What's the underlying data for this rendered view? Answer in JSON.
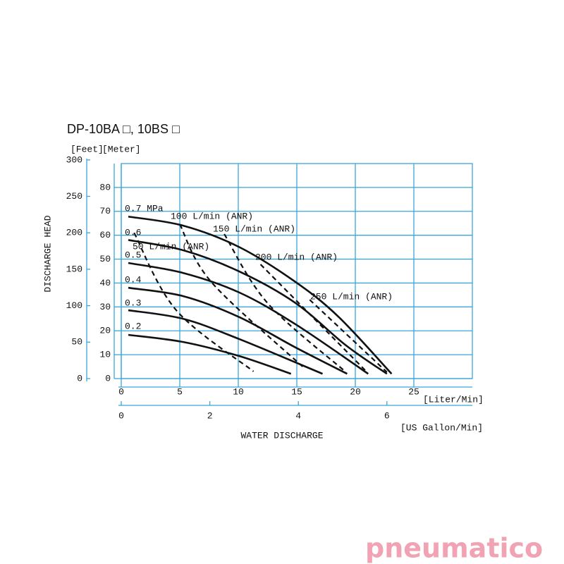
{
  "chart_data": {
    "type": "line",
    "title": "DP-10BA □, 10BS □",
    "y_label": "DISCHARGE HEAD",
    "y_unit": "[Meter]",
    "y2_unit": "[Feet]",
    "x_unit": "[Liter/Min]",
    "x2_unit": "[US Gallon/Min]",
    "x_label": "WATER DISCHARGE",
    "xlim": [
      0,
      30
    ],
    "xticks": [
      0,
      5,
      10,
      15,
      20,
      25
    ],
    "x2lim": [
      0,
      7.93
    ],
    "x2ticks": [
      0,
      2,
      4,
      6
    ],
    "ylim": [
      0,
      90
    ],
    "yticks": [
      0,
      10,
      20,
      30,
      40,
      50,
      60,
      70,
      80
    ],
    "y2lim": [
      0,
      295
    ],
    "y2ticks": [
      0,
      50,
      100,
      150,
      200,
      250,
      300
    ],
    "grid": true,
    "grid_color": "#3aa6d9",
    "series": [
      {
        "name": "0.7 MPa",
        "color": "#111",
        "style": "solid",
        "x": [
          0.6,
          5.3,
          10.1,
          14.9,
          18.6,
          23.1
        ],
        "values": [
          67.8,
          64,
          55,
          40.4,
          25.7,
          2
        ]
      },
      {
        "name": "0.6",
        "color": "#111",
        "style": "solid",
        "x": [
          0.6,
          5.3,
          10.1,
          14.9,
          19.2,
          22.7
        ],
        "values": [
          58,
          53.7,
          44.8,
          31.6,
          13.9,
          2
        ]
      },
      {
        "name": "0.5",
        "color": "#111",
        "style": "solid",
        "x": [
          0.6,
          5.3,
          10.1,
          14.9,
          21.1
        ],
        "values": [
          48.4,
          44.2,
          36,
          22.7,
          2
        ]
      },
      {
        "name": "0.4",
        "color": "#111",
        "style": "solid",
        "x": [
          0.6,
          5.3,
          10.1,
          14.9,
          19.3
        ],
        "values": [
          38,
          34.5,
          25.7,
          13,
          2
        ]
      },
      {
        "name": "0.3",
        "color": "#111",
        "style": "solid",
        "x": [
          0.6,
          5.3,
          10.1,
          17.2
        ],
        "values": [
          28.6,
          25,
          16.5,
          2
        ]
      },
      {
        "name": "0.2",
        "color": "#111",
        "style": "solid",
        "x": [
          0.6,
          5.3,
          10.1,
          14.5
        ],
        "values": [
          18.3,
          15.3,
          9.4,
          2
        ]
      },
      {
        "name": "50 L/min (ANR)",
        "color": "#111",
        "style": "dashed",
        "x": [
          1.1,
          4.7,
          11.3
        ],
        "values": [
          61,
          28.6,
          3
        ]
      },
      {
        "name": "100 L/min (ANR)",
        "color": "#111",
        "style": "dashed",
        "x": [
          5,
          7.7,
          15.5
        ],
        "values": [
          64.6,
          40.4,
          5
        ]
      },
      {
        "name": "150 L/min (ANR)",
        "color": "#111",
        "style": "dashed",
        "x": [
          8.8,
          12.5,
          19.2
        ],
        "values": [
          60.5,
          31.6,
          2.7
        ]
      },
      {
        "name": "200 L/min (ANR)",
        "color": "#111",
        "style": "dashed",
        "x": [
          11.9,
          21
        ],
        "values": [
          47.8,
          2.7
        ]
      },
      {
        "name": "250 L/min (ANR)",
        "color": "#111",
        "style": "dashed",
        "x": [
          16.1,
          22.7
        ],
        "values": [
          33,
          2.7
        ]
      }
    ]
  },
  "logo": "pneumatico"
}
